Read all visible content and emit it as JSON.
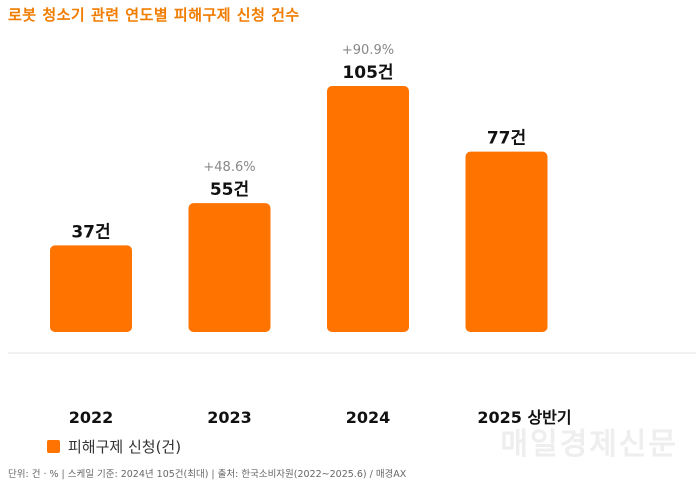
{
  "header": {
    "title": "로봇 청소기 관련 연도별 피해구제 신청 건수"
  },
  "chart_data": {
    "type": "bar",
    "title": "로봇 청소기 관련 연도별 피해구제 신청 건수",
    "categories": [
      "2022",
      "2023",
      "2024",
      "2025 상반기"
    ],
    "series": [
      {
        "name": "피해구제 신청(건)",
        "values": [
          37,
          55,
          105,
          77
        ],
        "value_labels": [
          "37건",
          "55건",
          "105건",
          "77건"
        ]
      }
    ],
    "annotations": [
      {
        "category": "2023",
        "text": "+48.6%"
      },
      {
        "category": "2024",
        "text": "+90.9%"
      }
    ],
    "xlabel": "",
    "ylabel": "",
    "ylim": [
      0,
      105
    ],
    "grid": false,
    "legend": "bottom-left",
    "colors": {
      "bar": "#ff7300",
      "title": "#f07c00"
    }
  },
  "legend": {
    "label": "피해구제 신청(건)"
  },
  "watermark": {
    "text": "매일경제신문"
  },
  "footnote": {
    "text": "단위: 건 · % | 스케일 기준: 2024년 105건(최대) | 출처: 한국소비자원(2022~2025.6) / 매경AX"
  }
}
